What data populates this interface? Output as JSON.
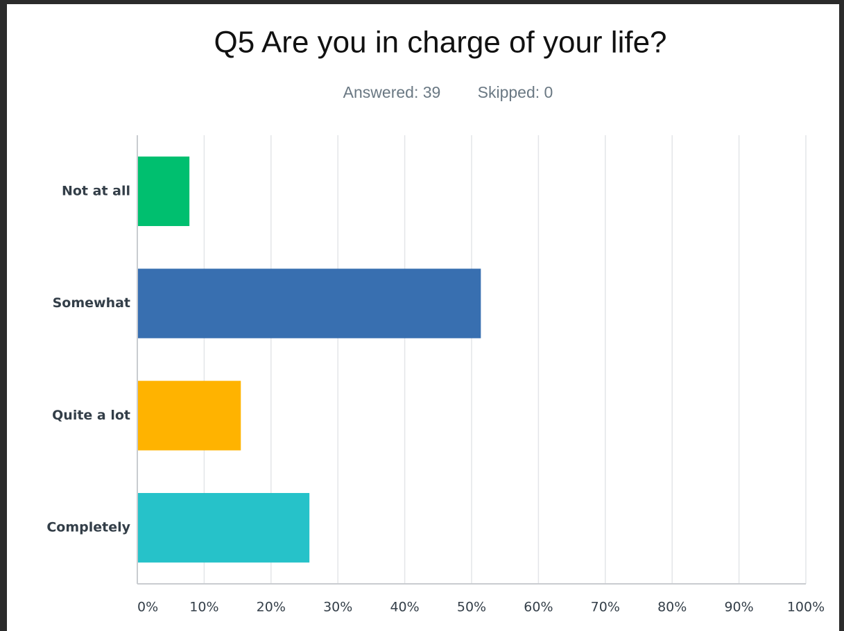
{
  "chart_data": {
    "type": "bar",
    "orientation": "horizontal",
    "title": "Q5 Are you in charge of your life?",
    "subtitle": [
      "Answered: 39",
      "Skipped: 0"
    ],
    "categories": [
      "Not at all",
      "Somewhat",
      "Quite a lot",
      "Completely"
    ],
    "values": [
      7.69,
      51.28,
      15.38,
      25.64
    ],
    "colors": [
      "#00bf6f",
      "#386fb0",
      "#ffb300",
      "#26c2c9"
    ],
    "xlim": [
      0,
      100
    ],
    "xticks": [
      {
        "value": 0,
        "label": "0%"
      },
      {
        "value": 10,
        "label": "10%"
      },
      {
        "value": 20,
        "label": "20%"
      },
      {
        "value": 30,
        "label": "30%"
      },
      {
        "value": 40,
        "label": "40%"
      },
      {
        "value": 50,
        "label": "50%"
      },
      {
        "value": 60,
        "label": "60%"
      },
      {
        "value": 70,
        "label": "70%"
      },
      {
        "value": 80,
        "label": "80%"
      },
      {
        "value": 90,
        "label": "90%"
      },
      {
        "value": 100,
        "label": "100%"
      }
    ],
    "grid": true
  }
}
